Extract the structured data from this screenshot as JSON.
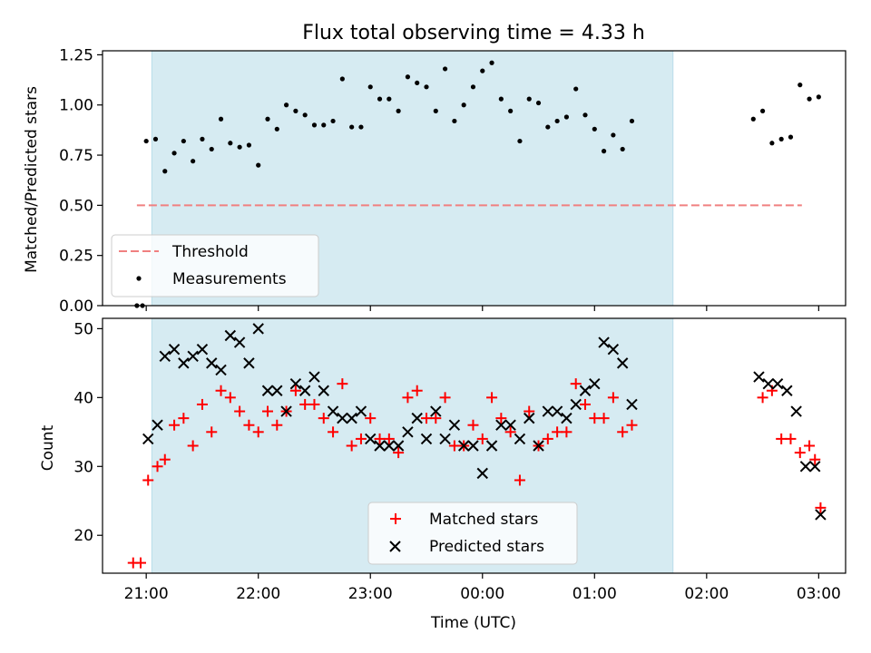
{
  "chart_data": [
    {
      "type": "scatter",
      "title": "Flux total observing time = 4.33 h",
      "ylabel": "Matched/Predicted stars",
      "xlabel": "",
      "ylim": [
        0,
        1.27
      ],
      "yticks": [
        "0.00",
        "0.25",
        "0.50",
        "0.75",
        "1.00",
        "1.25"
      ],
      "ytick_values": [
        0,
        0.25,
        0.5,
        0.75,
        1.0,
        1.25
      ],
      "x_is_time_hours_from_midnight": true,
      "shaded_span": [
        "21:03",
        "01:42"
      ],
      "threshold": {
        "name": "Threshold",
        "value": 0.5,
        "x_range": [
          "20:55",
          "02:51"
        ],
        "color": "#f08080"
      },
      "series": [
        {
          "name": "Measurements",
          "color": "#000000",
          "points": [
            [
              "20:55",
              0.0
            ],
            [
              "20:58",
              0.0
            ],
            [
              "21:00",
              0.82
            ],
            [
              "21:05",
              0.83
            ],
            [
              "21:10",
              0.67
            ],
            [
              "21:15",
              0.76
            ],
            [
              "21:20",
              0.82
            ],
            [
              "21:25",
              0.72
            ],
            [
              "21:30",
              0.83
            ],
            [
              "21:35",
              0.78
            ],
            [
              "21:40",
              0.93
            ],
            [
              "21:45",
              0.81
            ],
            [
              "21:50",
              0.79
            ],
            [
              "21:55",
              0.8
            ],
            [
              "22:00",
              0.7
            ],
            [
              "22:05",
              0.93
            ],
            [
              "22:10",
              0.88
            ],
            [
              "22:15",
              1.0
            ],
            [
              "22:20",
              0.97
            ],
            [
              "22:25",
              0.95
            ],
            [
              "22:30",
              0.9
            ],
            [
              "22:35",
              0.9
            ],
            [
              "22:40",
              0.92
            ],
            [
              "22:45",
              1.13
            ],
            [
              "22:50",
              0.89
            ],
            [
              "22:55",
              0.89
            ],
            [
              "23:00",
              1.09
            ],
            [
              "23:05",
              1.03
            ],
            [
              "23:10",
              1.03
            ],
            [
              "23:15",
              0.97
            ],
            [
              "23:20",
              1.14
            ],
            [
              "23:25",
              1.11
            ],
            [
              "23:30",
              1.09
            ],
            [
              "23:35",
              0.97
            ],
            [
              "23:40",
              1.18
            ],
            [
              "23:45",
              0.92
            ],
            [
              "23:50",
              1.0
            ],
            [
              "23:55",
              1.09
            ],
            [
              "00:00",
              1.17
            ],
            [
              "00:05",
              1.21
            ],
            [
              "00:10",
              1.03
            ],
            [
              "00:15",
              0.97
            ],
            [
              "00:20",
              0.82
            ],
            [
              "00:25",
              1.03
            ],
            [
              "00:30",
              1.01
            ],
            [
              "00:35",
              0.89
            ],
            [
              "00:40",
              0.92
            ],
            [
              "00:45",
              0.94
            ],
            [
              "00:50",
              1.08
            ],
            [
              "00:55",
              0.95
            ],
            [
              "01:00",
              0.88
            ],
            [
              "01:05",
              0.77
            ],
            [
              "01:10",
              0.85
            ],
            [
              "01:15",
              0.78
            ],
            [
              "01:20",
              0.92
            ],
            [
              "02:25",
              0.93
            ],
            [
              "02:30",
              0.97
            ],
            [
              "02:35",
              0.81
            ],
            [
              "02:40",
              0.83
            ],
            [
              "02:45",
              0.84
            ],
            [
              "02:50",
              1.1
            ],
            [
              "02:55",
              1.03
            ],
            [
              "03:00",
              1.04
            ]
          ]
        }
      ],
      "legend": {
        "placement": "lower-left",
        "entries": [
          "Threshold",
          "Measurements"
        ]
      }
    },
    {
      "type": "scatter",
      "title": "",
      "ylabel": "Count",
      "xlabel": "Time (UTC)",
      "ylim": [
        14.5,
        51.5
      ],
      "yticks": [
        "20",
        "30",
        "40",
        "50"
      ],
      "ytick_values": [
        20,
        30,
        40,
        50
      ],
      "xticks": [
        "21:00",
        "22:00",
        "23:00",
        "00:00",
        "01:00",
        "02:00",
        "03:00"
      ],
      "shaded_span": [
        "21:03",
        "01:42"
      ],
      "series": [
        {
          "name": "Matched stars",
          "color": "#ff0000",
          "marker": "plus",
          "points": [
            [
              "20:53",
              16
            ],
            [
              "20:57",
              16
            ],
            [
              "21:01",
              28
            ],
            [
              "21:06",
              30
            ],
            [
              "21:10",
              31
            ],
            [
              "21:15",
              36
            ],
            [
              "21:20",
              37
            ],
            [
              "21:25",
              33
            ],
            [
              "21:30",
              39
            ],
            [
              "21:35",
              35
            ],
            [
              "21:40",
              41
            ],
            [
              "21:45",
              40
            ],
            [
              "21:50",
              38
            ],
            [
              "21:55",
              36
            ],
            [
              "22:00",
              35
            ],
            [
              "22:05",
              38
            ],
            [
              "22:10",
              36
            ],
            [
              "22:15",
              38
            ],
            [
              "22:20",
              41
            ],
            [
              "22:25",
              39
            ],
            [
              "22:30",
              39
            ],
            [
              "22:35",
              37
            ],
            [
              "22:40",
              35
            ],
            [
              "22:45",
              42
            ],
            [
              "22:50",
              33
            ],
            [
              "22:55",
              34
            ],
            [
              "23:00",
              37
            ],
            [
              "23:05",
              34
            ],
            [
              "23:10",
              34
            ],
            [
              "23:15",
              32
            ],
            [
              "23:20",
              40
            ],
            [
              "23:25",
              41
            ],
            [
              "23:30",
              37
            ],
            [
              "23:35",
              37
            ],
            [
              "23:40",
              40
            ],
            [
              "23:45",
              33
            ],
            [
              "23:50",
              33
            ],
            [
              "23:55",
              36
            ],
            [
              "00:00",
              34
            ],
            [
              "00:05",
              40
            ],
            [
              "00:10",
              37
            ],
            [
              "00:15",
              35
            ],
            [
              "00:20",
              28
            ],
            [
              "00:25",
              38
            ],
            [
              "00:30",
              33
            ],
            [
              "00:35",
              34
            ],
            [
              "00:40",
              35
            ],
            [
              "00:45",
              35
            ],
            [
              "00:50",
              42
            ],
            [
              "00:55",
              39
            ],
            [
              "01:00",
              37
            ],
            [
              "01:05",
              37
            ],
            [
              "01:10",
              40
            ],
            [
              "01:15",
              35
            ],
            [
              "01:20",
              36
            ],
            [
              "02:30",
              40
            ],
            [
              "02:35",
              41
            ],
            [
              "02:40",
              34
            ],
            [
              "02:45",
              34
            ],
            [
              "02:50",
              32
            ],
            [
              "02:55",
              33
            ],
            [
              "02:58",
              31
            ],
            [
              "03:01",
              24
            ]
          ]
        },
        {
          "name": "Predicted stars",
          "color": "#000000",
          "marker": "x",
          "points": [
            [
              "21:01",
              34
            ],
            [
              "21:06",
              36
            ],
            [
              "21:10",
              46
            ],
            [
              "21:15",
              47
            ],
            [
              "21:20",
              45
            ],
            [
              "21:25",
              46
            ],
            [
              "21:30",
              47
            ],
            [
              "21:35",
              45
            ],
            [
              "21:40",
              44
            ],
            [
              "21:45",
              49
            ],
            [
              "21:50",
              48
            ],
            [
              "21:55",
              45
            ],
            [
              "22:00",
              50
            ],
            [
              "22:05",
              41
            ],
            [
              "22:10",
              41
            ],
            [
              "22:15",
              38
            ],
            [
              "22:20",
              42
            ],
            [
              "22:25",
              41
            ],
            [
              "22:30",
              43
            ],
            [
              "22:35",
              41
            ],
            [
              "22:40",
              38
            ],
            [
              "22:45",
              37
            ],
            [
              "22:50",
              37
            ],
            [
              "22:55",
              38
            ],
            [
              "23:00",
              34
            ],
            [
              "23:05",
              33
            ],
            [
              "23:10",
              33
            ],
            [
              "23:15",
              33
            ],
            [
              "23:20",
              35
            ],
            [
              "23:25",
              37
            ],
            [
              "23:30",
              34
            ],
            [
              "23:35",
              38
            ],
            [
              "23:40",
              34
            ],
            [
              "23:45",
              36
            ],
            [
              "23:50",
              33
            ],
            [
              "23:55",
              33
            ],
            [
              "00:00",
              29
            ],
            [
              "00:05",
              33
            ],
            [
              "00:10",
              36
            ],
            [
              "00:15",
              36
            ],
            [
              "00:20",
              34
            ],
            [
              "00:25",
              37
            ],
            [
              "00:30",
              33
            ],
            [
              "00:35",
              38
            ],
            [
              "00:40",
              38
            ],
            [
              "00:45",
              37
            ],
            [
              "00:50",
              39
            ],
            [
              "00:55",
              41
            ],
            [
              "01:00",
              42
            ],
            [
              "01:05",
              48
            ],
            [
              "01:10",
              47
            ],
            [
              "01:15",
              45
            ],
            [
              "01:20",
              39
            ],
            [
              "02:28",
              43
            ],
            [
              "02:33",
              42
            ],
            [
              "02:38",
              42
            ],
            [
              "02:43",
              41
            ],
            [
              "02:48",
              38
            ],
            [
              "02:53",
              30
            ],
            [
              "02:58",
              30
            ],
            [
              "03:01",
              23
            ]
          ]
        }
      ],
      "legend": {
        "placement": "lower-center",
        "entries": [
          "Matched stars",
          "Predicted stars"
        ]
      }
    }
  ]
}
